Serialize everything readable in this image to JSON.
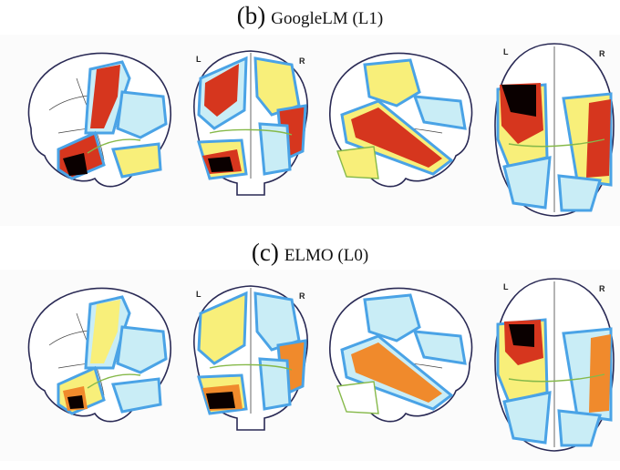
{
  "panels": [
    {
      "letter": "(b)",
      "model": "GoogleLM (L1)",
      "hemi_left": "L",
      "hemi_right": "R",
      "views": [
        "sagittal-left",
        "coronal",
        "sagittal-right",
        "axial"
      ]
    },
    {
      "letter": "(c)",
      "model": "ELMO (L0)",
      "hemi_left": "L",
      "hemi_right": "R",
      "views": [
        "sagittal-left",
        "coronal",
        "sagittal-right",
        "axial"
      ]
    }
  ],
  "colors": {
    "outline": "#2a2a55",
    "parcel_blue": "#4aa3e6",
    "parcel_green": "#86b94a",
    "light_cyan": "#c9edf6",
    "yellow": "#f8ef7a",
    "orange": "#f08a2c",
    "red": "#d6361e",
    "black": "#0a0000"
  }
}
